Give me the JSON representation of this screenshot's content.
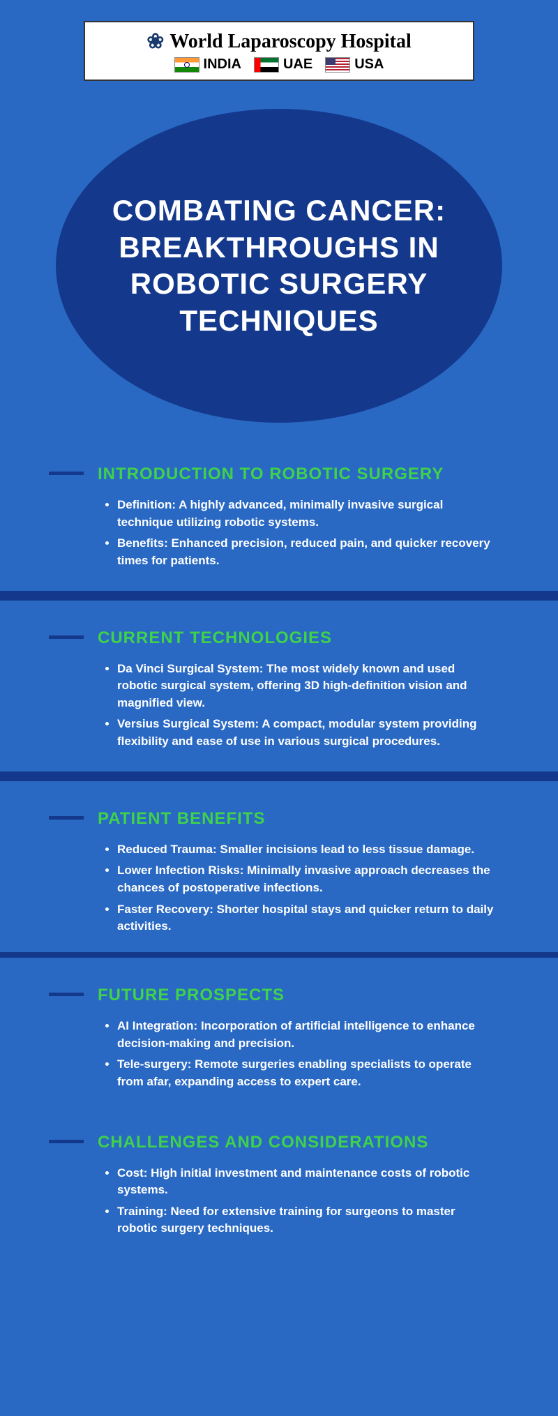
{
  "colors": {
    "page_bg": "#2969c4",
    "accent_dark": "#14398c",
    "heading_green": "#3fd24a",
    "text": "#ffffff"
  },
  "banner": {
    "title": "World Laparoscopy Hospital",
    "countries": [
      "INDIA",
      "UAE",
      "USA"
    ]
  },
  "title": "COMBATING CANCER: BREAKTHROUGHS IN ROBOTIC SURGERY TECHNIQUES",
  "sections": [
    {
      "heading": "INTRODUCTION TO ROBOTIC SURGERY",
      "bullets": [
        "Definition: A highly advanced, minimally invasive surgical technique utilizing robotic systems.",
        "Benefits: Enhanced precision, reduced pain, and quicker recovery times for patients."
      ],
      "divider_after": true
    },
    {
      "heading": "CURRENT TECHNOLOGIES",
      "bullets": [
        "Da Vinci Surgical System: The most widely known and used robotic surgical system, offering 3D high-definition vision and magnified view.",
        "Versius Surgical System: A compact, modular system providing flexibility and ease of use in various surgical procedures."
      ],
      "divider_after": true
    },
    {
      "heading": "PATIENT BENEFITS",
      "bullets": [
        "Reduced Trauma: Smaller incisions lead to less tissue damage.",
        "Lower Infection Risks: Minimally invasive approach decreases the chances of postoperative infections.",
        "Faster Recovery: Shorter hospital stays and quicker return to daily activities."
      ],
      "divider_after": true
    },
    {
      "heading": "FUTURE PROSPECTS",
      "bullets": [
        "AI Integration: Incorporation of artificial intelligence to enhance decision-making and precision.",
        "Tele-surgery: Remote surgeries enabling specialists to operate from afar, expanding access to expert care."
      ],
      "divider_after": false
    },
    {
      "heading": "CHALLENGES AND CONSIDERATIONS",
      "bullets": [
        "Cost: High initial investment and maintenance costs of robotic systems.",
        "Training: Need for extensive training for surgeons to master robotic surgery techniques."
      ],
      "divider_after": false
    }
  ]
}
